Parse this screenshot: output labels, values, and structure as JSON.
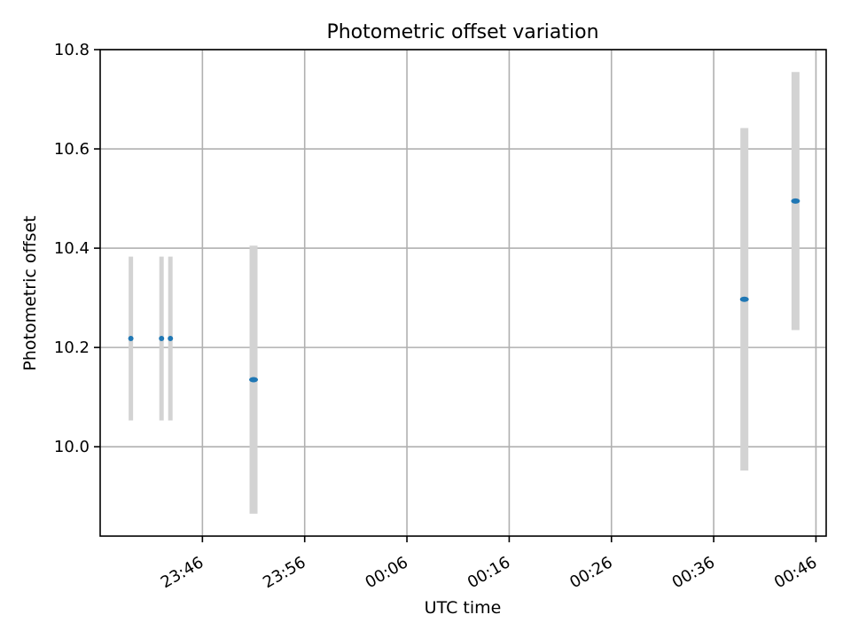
{
  "chart_data": {
    "type": "scatter",
    "title": "Photometric offset variation",
    "xlabel": "UTC time",
    "ylabel": "Photometric offset",
    "x_ticks": [
      "23:46",
      "23:56",
      "00:06",
      "00:16",
      "00:26",
      "00:36",
      "00:46"
    ],
    "y_ticks": [
      "10.0",
      "10.2",
      "10.4",
      "10.6",
      "10.8"
    ],
    "xlim": [
      "23:36",
      "00:47"
    ],
    "ylim": [
      9.82,
      10.8
    ],
    "grid": true,
    "series": [
      {
        "type": "errorbar",
        "marker_color": "#1f77b4",
        "errorbar_color": "#d3d3d3",
        "points": [
          {
            "x": "23:39",
            "y": 10.218,
            "yerr": 0.165
          },
          {
            "x": "23:42",
            "y": 10.218,
            "yerr": 0.165
          },
          {
            "x": "23:42",
            "y": 10.218,
            "yerr": 0.165
          },
          {
            "x": "23:51",
            "y": 10.135,
            "yerr": 0.27
          },
          {
            "x": "00:39",
            "y": 10.297,
            "yerr": 0.345
          },
          {
            "x": "00:44",
            "y": 10.495,
            "yerr": 0.26
          }
        ]
      }
    ]
  }
}
